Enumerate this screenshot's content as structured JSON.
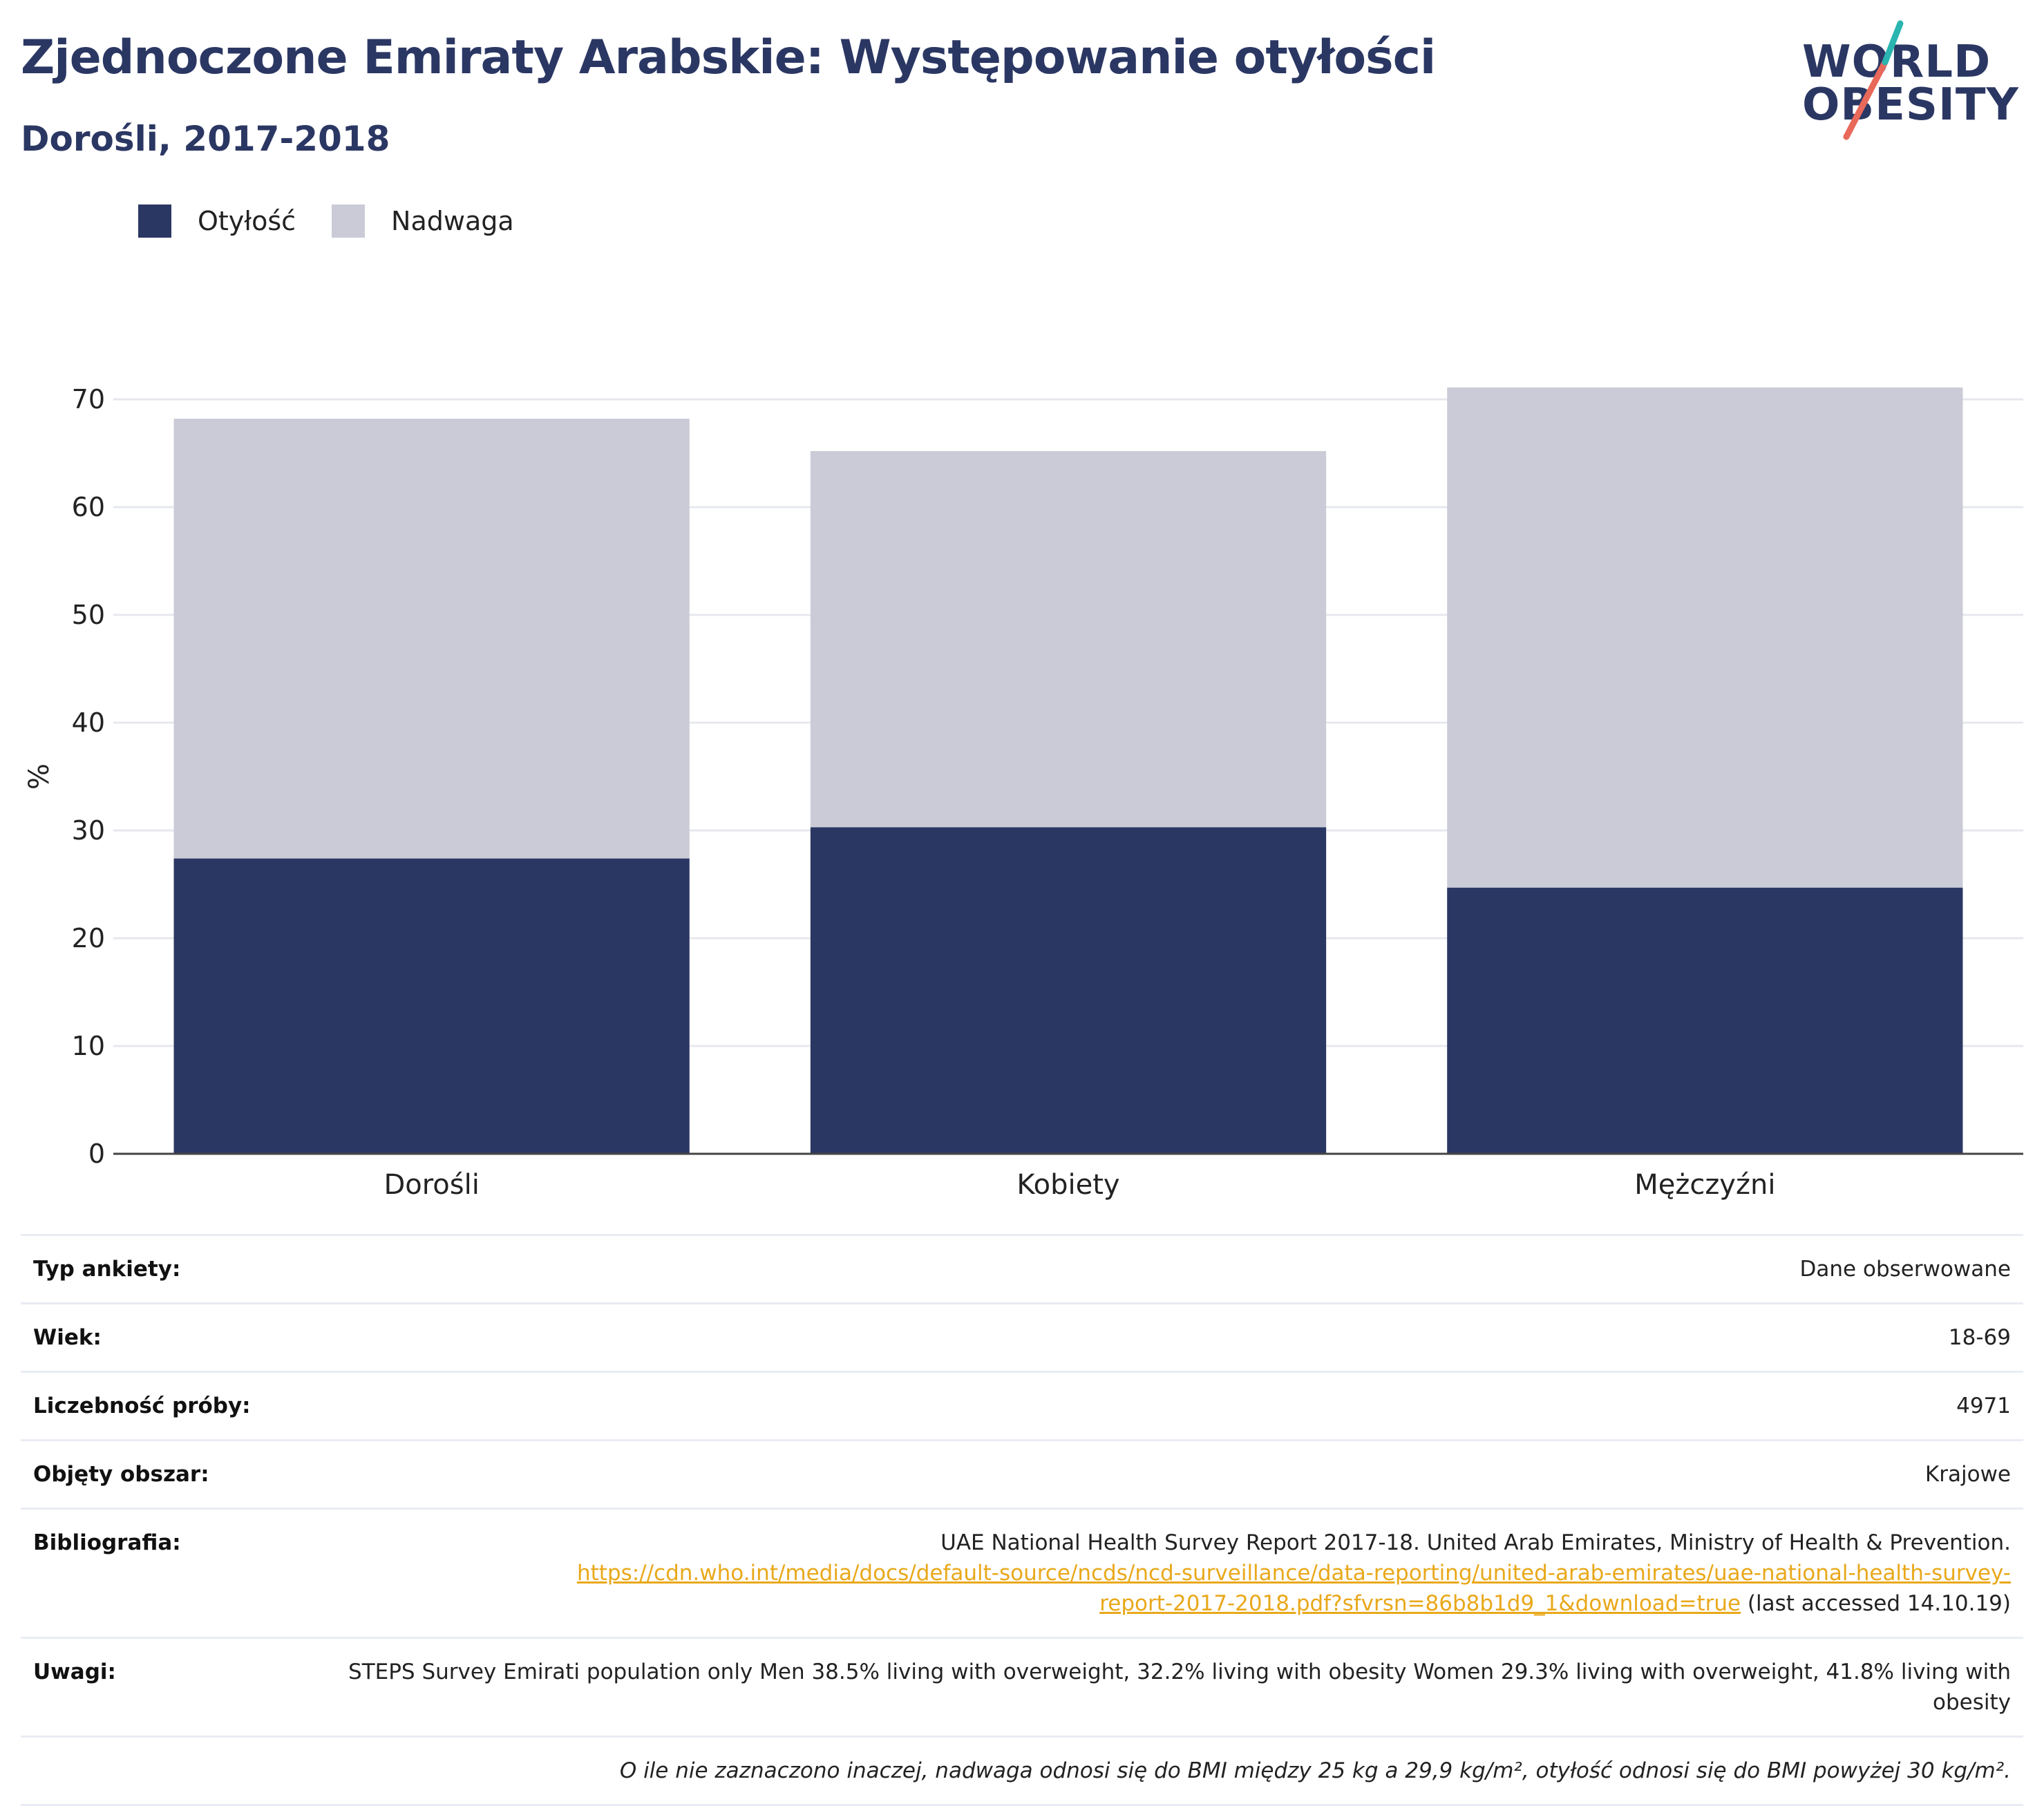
{
  "header": {
    "title": "Zjednoczone Emiraty Arabskie: Występowanie otyłości",
    "subtitle": "Dorośli, 2017-2018"
  },
  "logo": {
    "line1": "WORLD",
    "line2": "OBESITY",
    "accent_teal": "#2bb5b0",
    "accent_coral": "#e8695a"
  },
  "legend": [
    {
      "label": "Otyłość",
      "color": "#2b3763"
    },
    {
      "label": "Nadwaga",
      "color": "#cacbd7"
    }
  ],
  "chart_data": {
    "type": "bar",
    "stacked": true,
    "categories": [
      "Dorośli",
      "Kobiety",
      "Mężczyźni"
    ],
    "series": [
      {
        "name": "Otyłość",
        "color": "#2b3763",
        "values": [
          27.4,
          30.3,
          24.7
        ]
      },
      {
        "name": "Nadwaga",
        "color": "#cacbd7",
        "values": [
          40.8,
          34.9,
          46.4
        ]
      }
    ],
    "ylabel": "%",
    "ylim": [
      0,
      70
    ],
    "yticks": [
      0,
      10,
      20,
      30,
      40,
      50,
      60,
      70
    ],
    "grid": true,
    "legend_position": "top-left"
  },
  "meta": {
    "survey_type": {
      "label": "Typ ankiety:",
      "value": "Dane obserwowane"
    },
    "age": {
      "label": "Wiek:",
      "value": "18-69"
    },
    "sample": {
      "label": "Liczebność próby:",
      "value": "4971"
    },
    "area": {
      "label": "Objęty obszar:",
      "value": "Krajowe"
    },
    "bibliography": {
      "label": "Bibliografia:",
      "text": "UAE National Health Survey Report 2017-18. United Arab Emirates, Ministry of Health & Prevention.",
      "url_line1": "https://cdn.who.int/media/docs/default-source/ncds/ncd-surveillance/data-reporting/united-arab-emirates/uae-national-health-survey-",
      "url_line2": "report-2017-2018.pdf?sfvrsn=86b8b1d9_1&download=true",
      "accessed": " (last accessed 14.10.19)"
    },
    "notes": {
      "label": "Uwagi:",
      "value": "STEPS Survey Emirati population only Men 38.5% living with overweight, 32.2% living with obesity Women 29.3% living with overweight, 41.8% living with obesity"
    },
    "footnote": "O ile nie zaznaczono inaczej, nadwaga odnosi się do BMI między 25 kg a 29,9 kg/m², otyłość odnosi się do BMI powyżej 30 kg/m²."
  }
}
